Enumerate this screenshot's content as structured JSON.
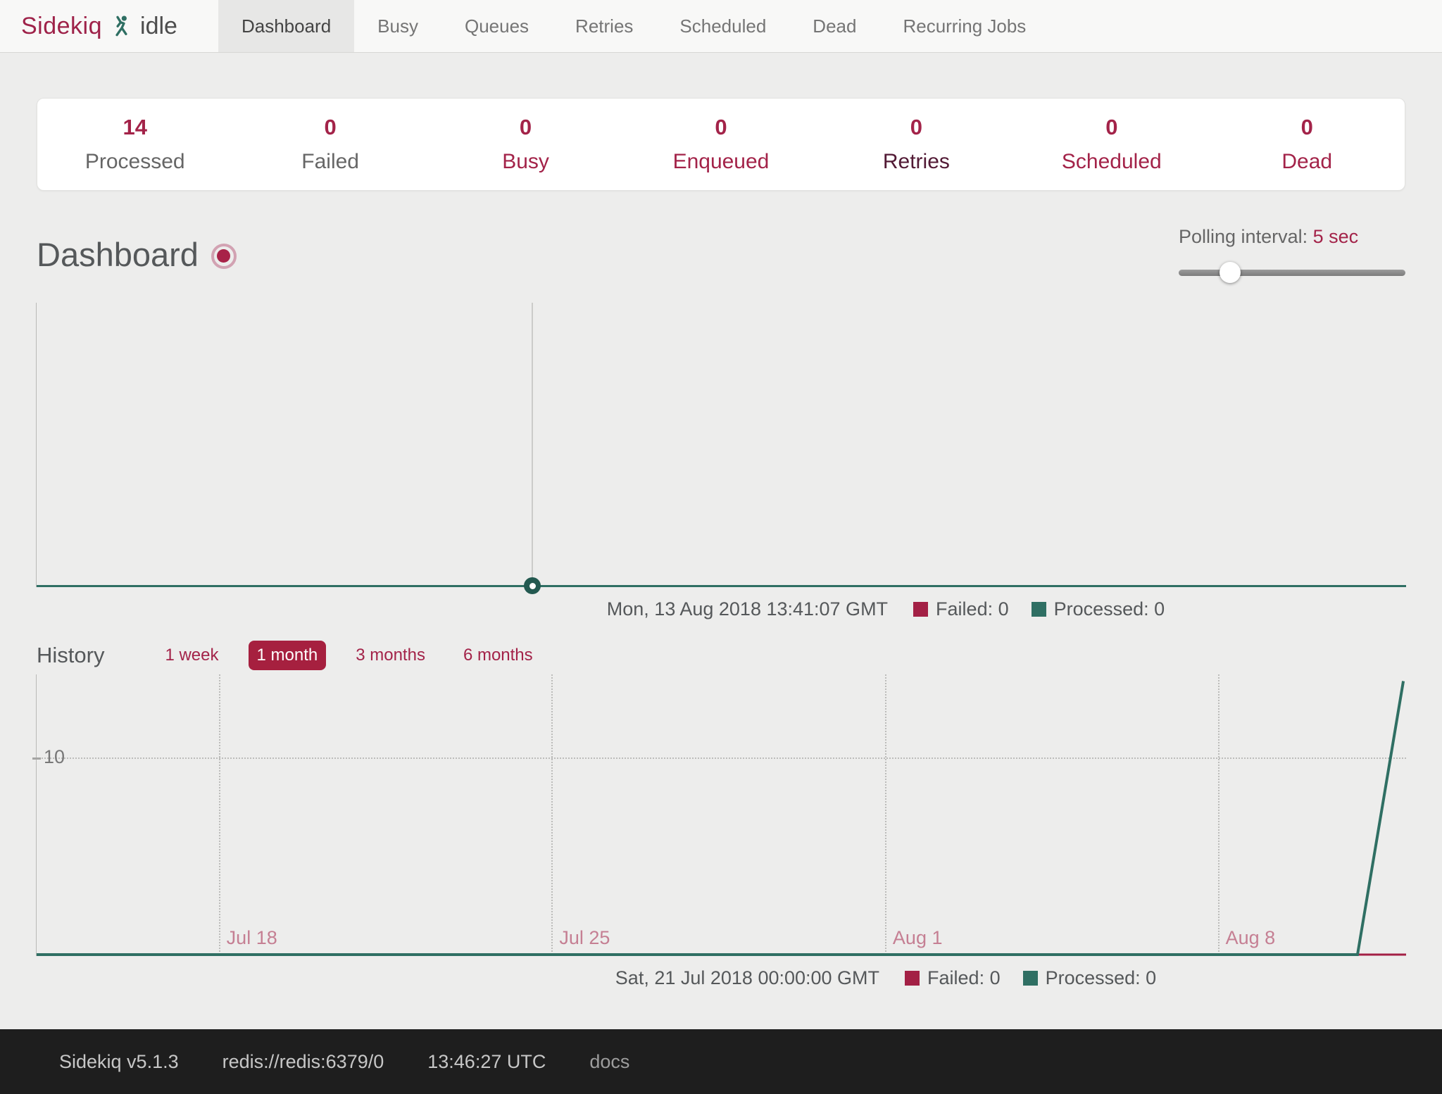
{
  "nav": {
    "brand": "Sidekiq",
    "status": "idle",
    "tabs": [
      {
        "label": "Dashboard",
        "active": true
      },
      {
        "label": "Busy",
        "active": false
      },
      {
        "label": "Queues",
        "active": false
      },
      {
        "label": "Retries",
        "active": false
      },
      {
        "label": "Scheduled",
        "active": false
      },
      {
        "label": "Dead",
        "active": false
      },
      {
        "label": "Recurring Jobs",
        "active": false
      }
    ]
  },
  "stats": [
    {
      "value": "14",
      "label": "Processed"
    },
    {
      "value": "0",
      "label": "Failed"
    },
    {
      "value": "0",
      "label": "Busy"
    },
    {
      "value": "0",
      "label": "Enqueued"
    },
    {
      "value": "0",
      "label": "Retries"
    },
    {
      "value": "0",
      "label": "Scheduled"
    },
    {
      "value": "0",
      "label": "Dead"
    }
  ],
  "page_title": "Dashboard",
  "polling": {
    "label": "Polling interval:",
    "value": "5 sec"
  },
  "realtime_legend": {
    "date": "Mon, 13 Aug 2018 13:41:07 GMT",
    "failed": "Failed: 0",
    "processed": "Processed: 0"
  },
  "history": {
    "title": "History",
    "ranges": [
      {
        "label": "1 week",
        "active": false
      },
      {
        "label": "1 month",
        "active": true
      },
      {
        "label": "3 months",
        "active": false
      },
      {
        "label": "6 months",
        "active": false
      }
    ]
  },
  "history_legend": {
    "date": "Sat, 21 Jul 2018 00:00:00 GMT",
    "failed": "Failed: 0",
    "processed": "Processed: 0"
  },
  "colors": {
    "brand_red": "#9e2249",
    "accent_red": "#a32045",
    "teal": "#2f6f63",
    "x_tick_pink": "#c57f93"
  },
  "chart_data": [
    {
      "type": "line",
      "title": "Realtime processed/failed (per poll)",
      "cursor_time": "Mon, 13 Aug 2018 13:41:07 GMT",
      "cursor_pos": 0.3615,
      "ylim": [
        0,
        1
      ],
      "grid": false,
      "legend_position": "bottom",
      "series": [
        {
          "name": "Failed",
          "color": "#a32045",
          "values_flat": 0
        },
        {
          "name": "Processed",
          "color": "#2f6f63",
          "values_flat": 0
        }
      ]
    },
    {
      "type": "line",
      "title": "History (1 month)",
      "ylim": [
        0,
        14.2
      ],
      "grid": true,
      "legend_position": "bottom",
      "x_ticks": [
        {
          "label": "Jul 18",
          "pos": 0.133
        },
        {
          "label": "Jul 25",
          "pos": 0.376
        },
        {
          "label": "Aug 1",
          "pos": 0.6195
        },
        {
          "label": "Aug 8",
          "pos": 0.8625
        }
      ],
      "y_ticks": [
        {
          "label": "10",
          "value": 10
        }
      ],
      "series": [
        {
          "name": "Failed",
          "color": "#a32045",
          "width": 3,
          "points": [
            {
              "x": 0,
              "y": 0
            },
            {
              "x": 1,
              "y": 0
            }
          ]
        },
        {
          "name": "Processed",
          "color": "#2f6f63",
          "width": 4,
          "points": [
            {
              "x": 0,
              "y": 0
            },
            {
              "x": 0.9645,
              "y": 0
            },
            {
              "x": 0.998,
              "y": 14
            }
          ]
        }
      ]
    }
  ],
  "footer": {
    "version": "Sidekiq v5.1.3",
    "redis_url": "redis://redis:6379/0",
    "time": "13:46:27 UTC",
    "docs_label": "docs"
  }
}
